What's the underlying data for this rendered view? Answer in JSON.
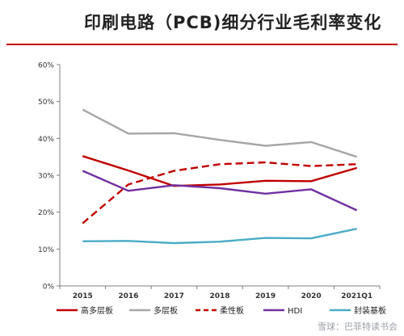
{
  "title": "印刷电路（PCB)细分行业毛利率变化",
  "watermark": "雪球：巴菲特读书会",
  "colors": {
    "title_rule": "#c00000"
  },
  "chart_data": {
    "type": "line",
    "categories": [
      "2015",
      "2016",
      "2017",
      "2018",
      "2019",
      "2020",
      "2021Q1"
    ],
    "y_ticks": [
      "0%",
      "10%",
      "20%",
      "30%",
      "40%",
      "50%",
      "60%"
    ],
    "ylim": [
      0,
      60
    ],
    "grid": false,
    "legend_position": "bottom",
    "series": [
      {
        "name": "高多层板",
        "color": "#c00000",
        "dash": false,
        "values": [
          35.2,
          31.3,
          27.1,
          27.5,
          28.5,
          28.4,
          32.0
        ]
      },
      {
        "name": "多层板",
        "color": "#a6a6a6",
        "dash": false,
        "values": [
          47.8,
          41.3,
          41.4,
          39.6,
          38.0,
          39.0,
          35.0
        ]
      },
      {
        "name": "柔性板",
        "color": "#c00000",
        "dash": true,
        "values": [
          17.0,
          27.5,
          31.2,
          33.0,
          33.5,
          32.5,
          33.0
        ]
      },
      {
        "name": "HDI",
        "color": "#7030a0",
        "dash": false,
        "values": [
          31.2,
          25.8,
          27.3,
          26.5,
          25.0,
          26.2,
          20.5
        ]
      },
      {
        "name": "封装基板",
        "color": "#4bacc6",
        "dash": false,
        "values": [
          12.1,
          12.2,
          11.6,
          12.0,
          13.0,
          12.9,
          15.5
        ]
      }
    ]
  }
}
